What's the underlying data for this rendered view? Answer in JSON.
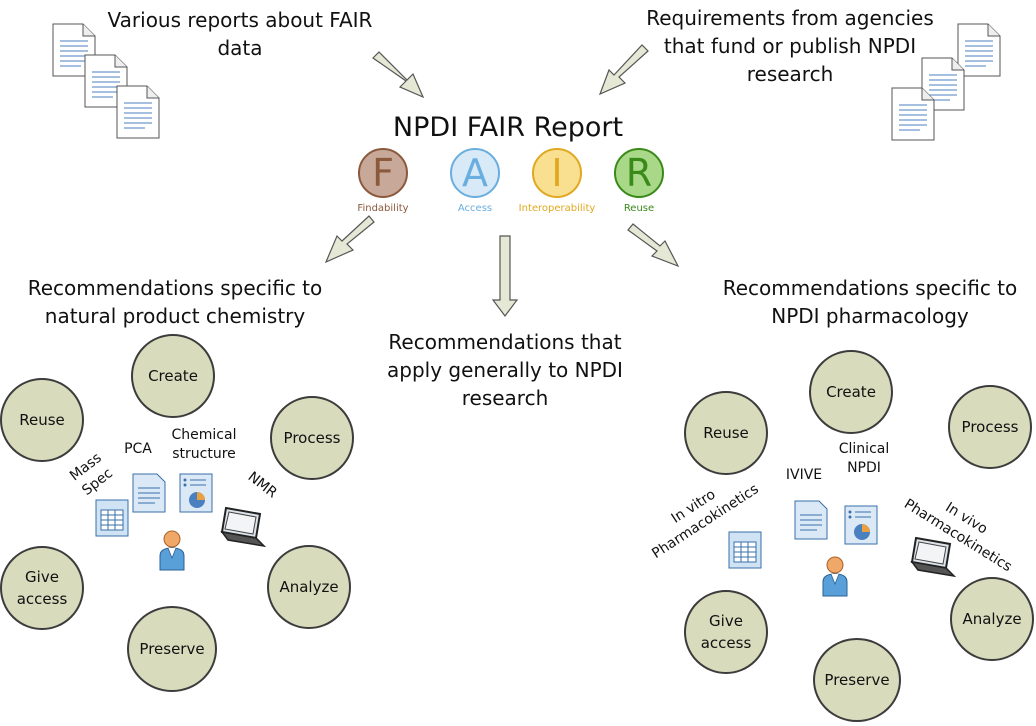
{
  "title": "NPDI FAIR Report",
  "top_left_text": "Various reports about FAIR data",
  "top_right_text": "Requirements from agencies that fund or publish NPDI research",
  "left_heading": "Recommendations specific to natural product chemistry",
  "center_heading": "Recommendations that apply generally to NPDI research",
  "right_heading": "Recommendations specific to NPDI pharmacology",
  "fair": [
    {
      "letter": "F",
      "label": "Findability",
      "color": "#8b5a3c",
      "fill": "#c8a898"
    },
    {
      "letter": "A",
      "label": "Access",
      "color": "#6aaee0",
      "fill": "#d8eaf8"
    },
    {
      "letter": "I",
      "label": "Interoperability",
      "color": "#e0a820",
      "fill": "#f8e090"
    },
    {
      "letter": "R",
      "label": "Reuse",
      "color": "#3a8a1a",
      "fill": "#a8d888"
    }
  ],
  "left_cycle": {
    "create": "Create",
    "process": "Process",
    "analyze": "Analyze",
    "preserve": "Preserve",
    "give_access": "Give access",
    "reuse": "Reuse"
  },
  "right_cycle": {
    "create": "Create",
    "process": "Process",
    "analyze": "Analyze",
    "preserve": "Preserve",
    "give_access": "Give access",
    "reuse": "Reuse"
  },
  "left_labels": {
    "mass_spec": "Mass Spec",
    "pca": "PCA",
    "chemical_structure": "Chemical structure",
    "nmr": "NMR"
  },
  "right_labels": {
    "in_vitro": "In vitro Pharmacokinetics",
    "ivive": "IVIVE",
    "clinical": "Clinical NPDI",
    "in_vivo": "In vivo Pharmacokinetics"
  },
  "colors": {
    "circle_fill": "#d9dbbd",
    "arrow_fill": "#e6e8d6"
  }
}
